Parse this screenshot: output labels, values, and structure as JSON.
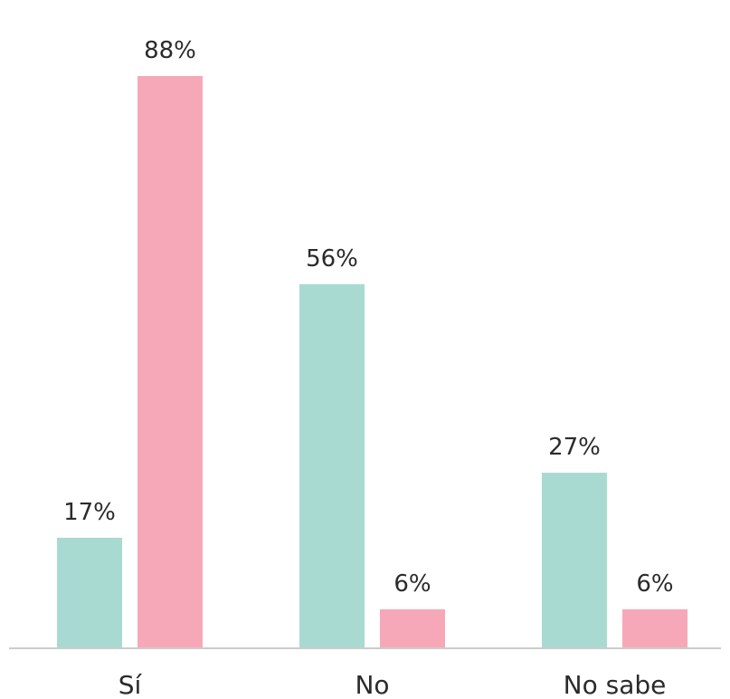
{
  "chart_data": {
    "type": "bar",
    "categories": [
      "Sí",
      "No",
      "No sabe"
    ],
    "series": [
      {
        "values": [
          17,
          56,
          27
        ],
        "color": "#a8dad2"
      },
      {
        "values": [
          88,
          6,
          6
        ],
        "color": "#f7a8b8"
      }
    ],
    "value_suffix": "%",
    "ylim": [
      0,
      100
    ],
    "grid": false,
    "legend": "none",
    "axis_color": "#cccccc"
  }
}
